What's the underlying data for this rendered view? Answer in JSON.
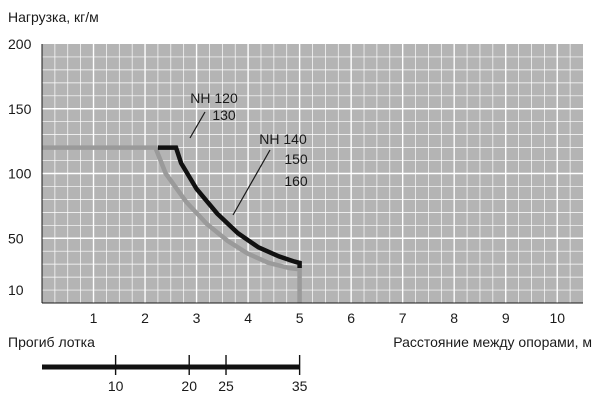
{
  "chart_data": {
    "type": "line",
    "ylabel": "Нагрузка, кг/м",
    "xlabel": "Расстояние между опорами, м",
    "xlim": [
      0,
      10.5
    ],
    "ylim": [
      0,
      200
    ],
    "x_ticks": [
      1,
      2,
      3,
      4,
      5,
      6,
      7,
      8,
      9,
      10
    ],
    "y_ticks": [
      10,
      50,
      100,
      150,
      200
    ],
    "grid": true,
    "colors": {
      "plot_bg": "#b4b4b4",
      "grid": "#ffffff",
      "series_nh120_130": "#9a9a9a",
      "series_nh140_160": "#111111"
    },
    "series": [
      {
        "labels": [
          "NH 120",
          "130"
        ],
        "x": [
          0,
          2.2,
          2.4,
          2.8,
          3.2,
          3.6,
          4.0,
          4.4,
          4.8,
          5.0,
          5.0
        ],
        "y": [
          120,
          120,
          100,
          78,
          61,
          48,
          38,
          31,
          27,
          26,
          0
        ]
      },
      {
        "labels": [
          "NH 140",
          "150",
          "160"
        ],
        "x": [
          2.25,
          2.6,
          2.7,
          3.0,
          3.4,
          3.8,
          4.2,
          4.6,
          4.9,
          5.0,
          5.0
        ],
        "y": [
          120,
          120,
          108,
          88,
          69,
          54,
          43,
          36,
          32,
          31,
          27
        ]
      }
    ],
    "deflection_scale": {
      "label": "Прогиб лотка",
      "ticks": [
        10,
        20,
        25,
        35
      ],
      "range": [
        0,
        35
      ]
    }
  }
}
